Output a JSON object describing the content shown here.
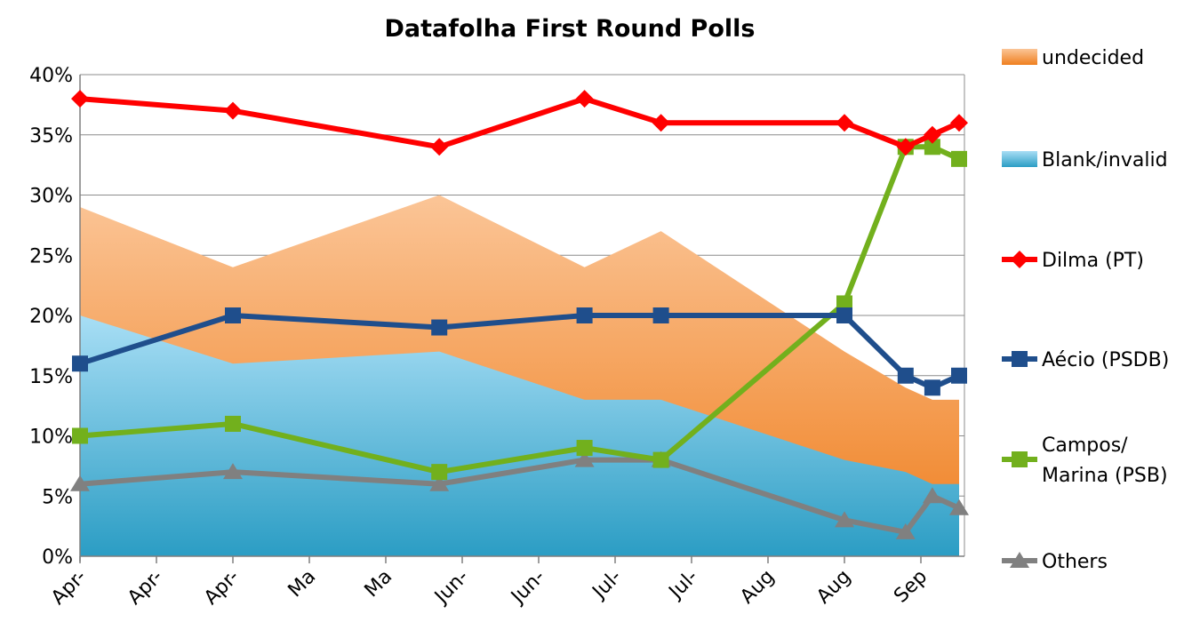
{
  "chart_data": {
    "type": "line",
    "title": "Datafolha First Round Polls",
    "xlabel": "",
    "ylabel": "",
    "ylim": [
      0,
      40
    ],
    "y_ticks": [
      "0%",
      "5%",
      "10%",
      "15%",
      "20%",
      "25%",
      "30%",
      "35%",
      "40%"
    ],
    "x_tick_labels": [
      "Apr-",
      "Apr-",
      "Apr-",
      "Ma",
      "Ma",
      "Jun-",
      "Jun-",
      "Jul-",
      "Jul-",
      "Aug",
      "Aug",
      "Sep"
    ],
    "grid": true,
    "legend_position": "right",
    "x": [
      0,
      2.0,
      4.7,
      6.6,
      7.6,
      10.0,
      10.8,
      11.15,
      11.5
    ],
    "series": [
      {
        "name": "undecided",
        "kind": "area",
        "color": "#f08a30",
        "values": [
          29,
          24,
          30,
          24,
          27,
          17,
          14,
          13,
          13
        ]
      },
      {
        "name": "Blank/invalid",
        "kind": "area",
        "color": "#4ab0d8",
        "values": [
          20,
          16,
          17,
          13,
          13,
          8,
          7,
          6,
          6
        ]
      },
      {
        "name": "Dilma (PT)",
        "kind": "line",
        "marker": "diamond",
        "color": "#ff0000",
        "values": [
          38,
          37,
          34,
          38,
          36,
          36,
          34,
          35,
          36
        ]
      },
      {
        "name": "Aécio (PSDB)",
        "kind": "line",
        "marker": "square",
        "color": "#1f4e8c",
        "values": [
          16,
          20,
          19,
          20,
          20,
          20,
          15,
          14,
          15
        ]
      },
      {
        "name": "Campos/ Marina (PSB)",
        "label_lines": [
          "Campos/",
          "Marina (PSB)"
        ],
        "kind": "line",
        "marker": "square",
        "color": "#72b01d",
        "values": [
          10,
          11,
          7,
          9,
          8,
          21,
          34,
          34,
          33
        ]
      },
      {
        "name": "Others",
        "kind": "line",
        "marker": "triangle",
        "color": "#808080",
        "values": [
          6,
          7,
          6,
          8,
          8,
          3,
          2,
          5,
          4
        ]
      }
    ]
  }
}
